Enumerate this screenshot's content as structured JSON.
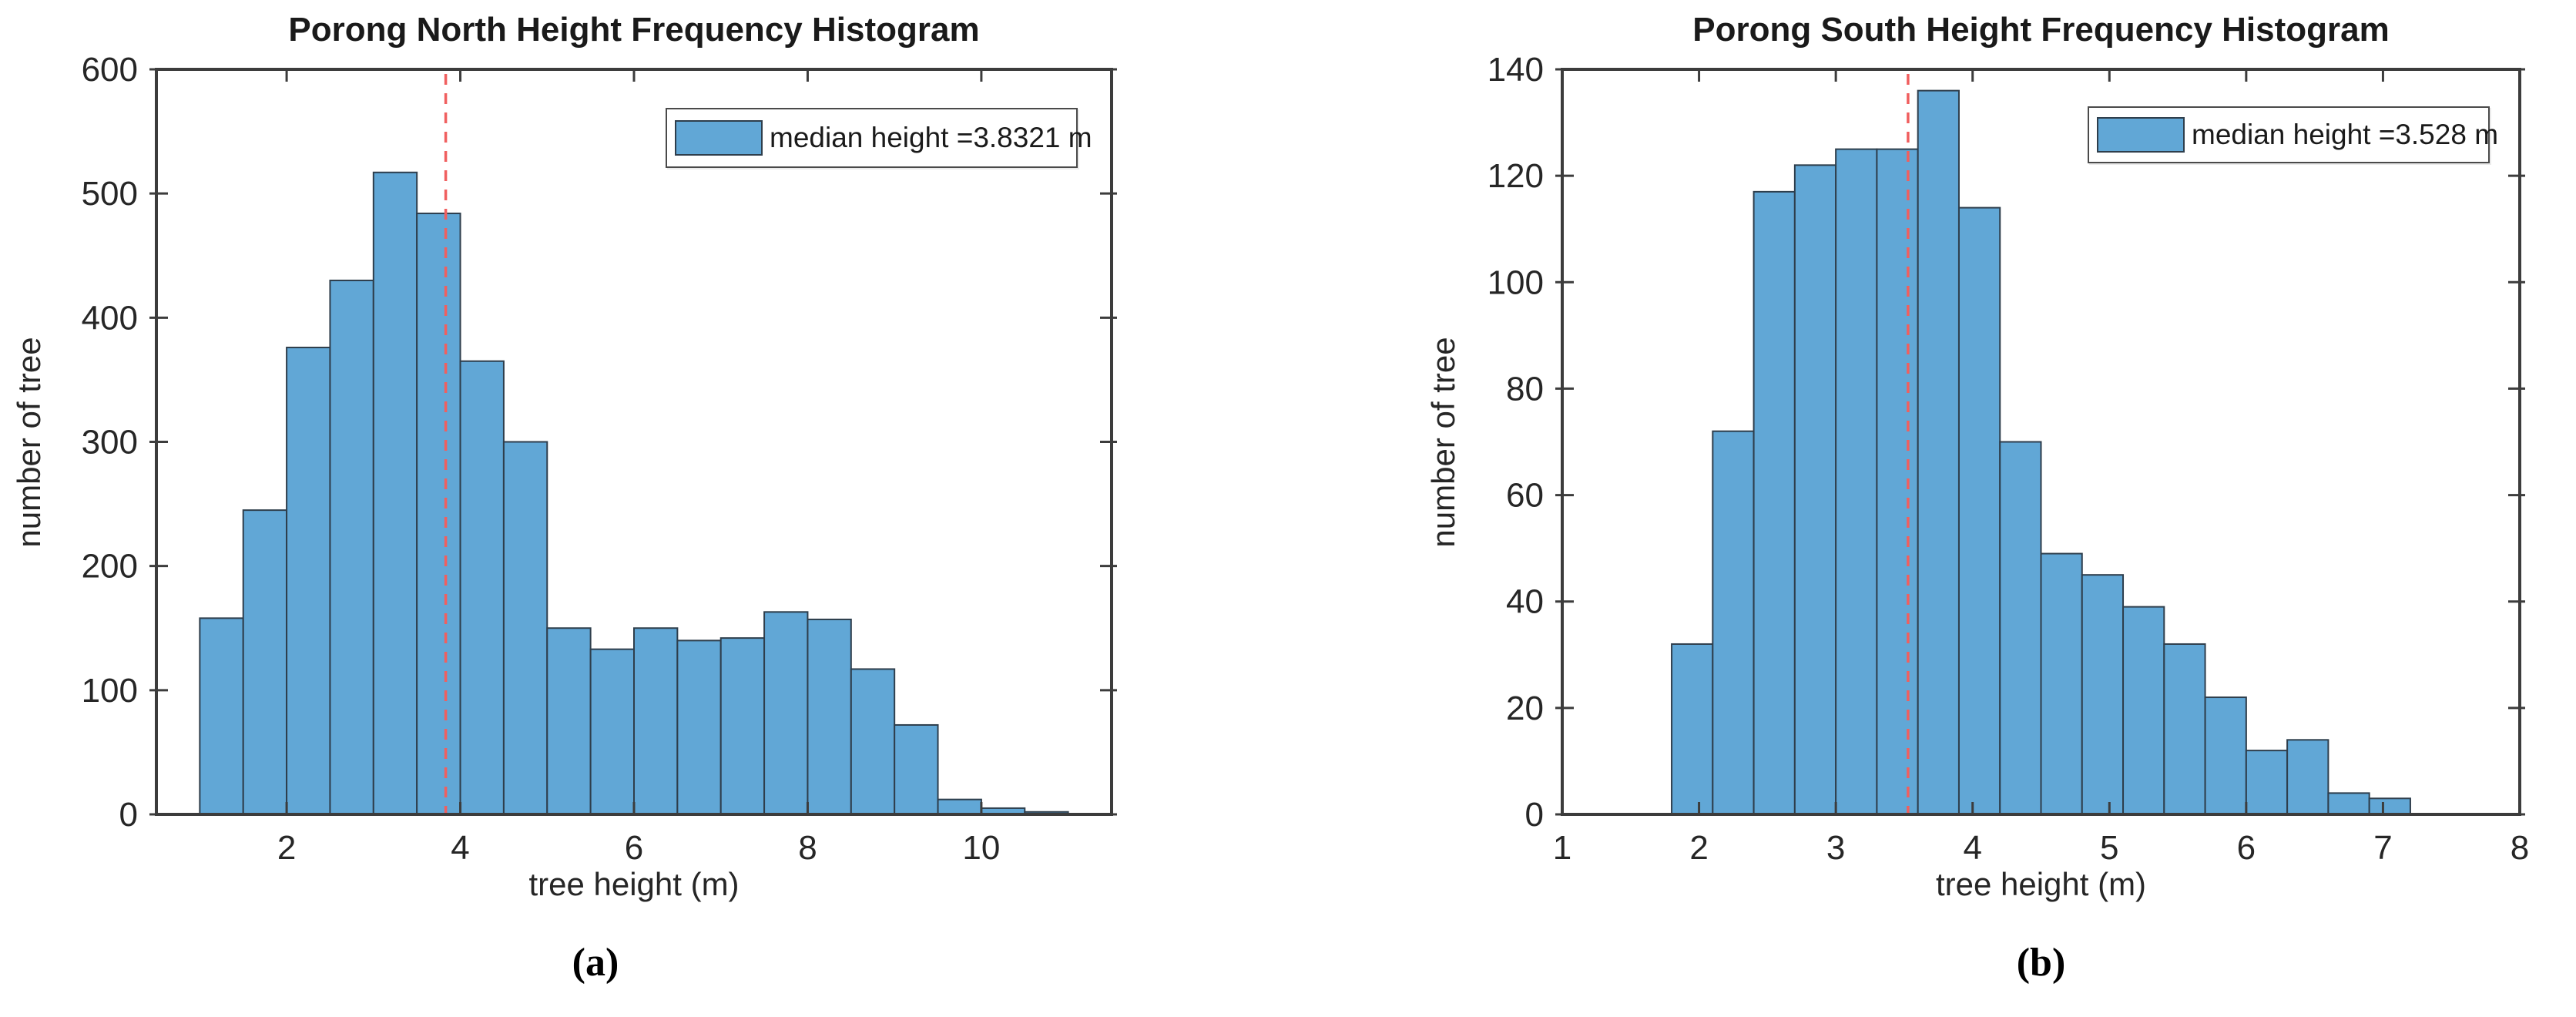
{
  "colors": {
    "bar_fill": "#61A7D6",
    "bar_edge": "#2E3E4C",
    "median_line": "#F05F5F",
    "axis": "#3C3C3C",
    "text": "#262626",
    "legend_border": "#4A4A4A"
  },
  "chart_data": [
    {
      "type": "bar",
      "title": "Porong North Height Frequency Histogram",
      "xlabel": "tree height (m)",
      "ylabel": "number of tree",
      "caption": "(a)",
      "legend_label": "median height =3.8321 m",
      "legend_position": "top-right",
      "median_height_m": 3.8321,
      "bin_start": 1.0,
      "bin_width": 0.5,
      "counts": [
        158,
        245,
        376,
        430,
        517,
        484,
        365,
        300,
        150,
        133,
        150,
        140,
        142,
        163,
        157,
        117,
        72,
        12,
        5,
        2
      ],
      "xlim": [
        0.5,
        11.5
      ],
      "ylim": [
        0,
        600
      ],
      "xticks": [
        2,
        4,
        6,
        8,
        10
      ],
      "yticks": [
        0,
        100,
        200,
        300,
        400,
        500,
        600
      ],
      "grid": false
    },
    {
      "type": "bar",
      "title": "Porong South Height Frequency Histogram",
      "xlabel": "tree height (m)",
      "ylabel": "number of tree",
      "caption": "(b)",
      "legend_label": "median height =3.528 m",
      "legend_position": "top-right",
      "median_height_m": 3.528,
      "bin_start": 1.8,
      "bin_width": 0.3,
      "counts": [
        32,
        72,
        117,
        122,
        125,
        125,
        136,
        114,
        70,
        49,
        45,
        39,
        32,
        22,
        12,
        14,
        4,
        3
      ],
      "xlim": [
        1,
        8
      ],
      "ylim": [
        0,
        140
      ],
      "xticks": [
        1,
        2,
        3,
        4,
        5,
        6,
        7,
        8
      ],
      "yticks": [
        0,
        20,
        40,
        60,
        80,
        100,
        120,
        140
      ],
      "grid": false
    }
  ]
}
